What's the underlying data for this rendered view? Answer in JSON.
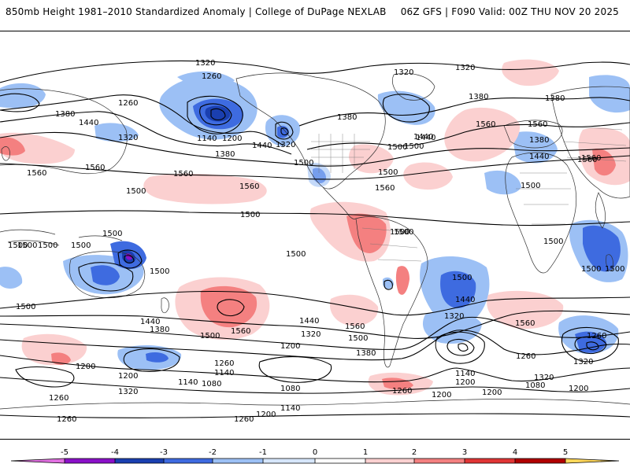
{
  "header": {
    "title": "850mb Height 1981–2010 Standardized Anomaly | College of DuPage NEXLAB",
    "run_info": "06Z GFS | F090 Valid: 00Z THU NOV 20 2025"
  },
  "colorbar": {
    "ticks": [
      "-5",
      "-4",
      "-3",
      "-2",
      "-1",
      "0",
      "1",
      "2",
      "3",
      "4",
      "5"
    ],
    "colors": [
      "#e070e0",
      "#8a10c8",
      "#1a3fb0",
      "#3e6be0",
      "#9cc0f5",
      "#d6e6fb",
      "#ffffff",
      "#fbd0d0",
      "#f48080",
      "#e03535",
      "#b00000",
      "#f6a000",
      "#ffd75a"
    ]
  },
  "contour_labels": [
    {
      "id": "1320-a",
      "text": "1320"
    },
    {
      "id": "1320-b",
      "text": "1320"
    },
    {
      "id": "1320-c",
      "text": "1320"
    },
    {
      "id": "1260-a",
      "text": "1260"
    },
    {
      "id": "1260-b",
      "text": "1260"
    },
    {
      "id": "1380-a",
      "text": "1380"
    },
    {
      "id": "1440-a",
      "text": "1440"
    },
    {
      "id": "1320-d",
      "text": "1320"
    },
    {
      "id": "1140-a",
      "text": "1140"
    },
    {
      "id": "1200-a",
      "text": "1200"
    },
    {
      "id": "1380-b",
      "text": "1380"
    },
    {
      "id": "1440-b",
      "text": "1440"
    },
    {
      "id": "1320-e",
      "text": "1320"
    },
    {
      "id": "1500-a",
      "text": "1500"
    },
    {
      "id": "1500-b",
      "text": "1500"
    },
    {
      "id": "1380-c",
      "text": "1380"
    },
    {
      "id": "1440-c",
      "text": "1440"
    },
    {
      "id": "1500-c",
      "text": "1500"
    },
    {
      "id": "1560-a",
      "text": "1560"
    },
    {
      "id": "1560-b",
      "text": "1560"
    },
    {
      "id": "1560-c",
      "text": "1560"
    },
    {
      "id": "1560-d",
      "text": "1560"
    },
    {
      "id": "1500-d",
      "text": "1500"
    },
    {
      "id": "1560-e",
      "text": "1560"
    },
    {
      "id": "1560-f",
      "text": "1560"
    },
    {
      "id": "1380-d",
      "text": "1380"
    },
    {
      "id": "1440-d",
      "text": "1440"
    },
    {
      "id": "1500-e",
      "text": "1500"
    },
    {
      "id": "1560-g",
      "text": "1560"
    },
    {
      "id": "1500-f",
      "text": "1500"
    },
    {
      "id": "1500-g",
      "text": "1500"
    },
    {
      "id": "1500-h",
      "text": "1500"
    },
    {
      "id": "1500-i",
      "text": "1500"
    },
    {
      "id": "1500-j",
      "text": "1500"
    },
    {
      "id": "1500-k",
      "text": "1500"
    },
    {
      "id": "1500-l",
      "text": "1500"
    },
    {
      "id": "1500-m",
      "text": "1500"
    },
    {
      "id": "1500-n",
      "text": "1500"
    },
    {
      "id": "1500-o",
      "text": "1500"
    },
    {
      "id": "1500-p",
      "text": "1500"
    },
    {
      "id": "1500-q",
      "text": "1500"
    },
    {
      "id": "1440-e",
      "text": "1440"
    },
    {
      "id": "1380-e",
      "text": "1380"
    },
    {
      "id": "1500-r",
      "text": "1500"
    },
    {
      "id": "1560-h",
      "text": "1560"
    },
    {
      "id": "1440-f",
      "text": "1440"
    },
    {
      "id": "1320-f",
      "text": "1320"
    },
    {
      "id": "1200-b",
      "text": "1200"
    },
    {
      "id": "1560-i",
      "text": "1560"
    },
    {
      "id": "1500-s",
      "text": "1500"
    },
    {
      "id": "1380-f",
      "text": "1380"
    },
    {
      "id": "1260-c",
      "text": "1260"
    },
    {
      "id": "1140-b",
      "text": "1140"
    },
    {
      "id": "1200-c",
      "text": "1200"
    },
    {
      "id": "1140-c",
      "text": "1140"
    },
    {
      "id": "1080-a",
      "text": "1080"
    },
    {
      "id": "1080-b",
      "text": "1080"
    },
    {
      "id": "1320-g",
      "text": "1320"
    },
    {
      "id": "1200-d",
      "text": "1200"
    },
    {
      "id": "1260-d",
      "text": "1260"
    },
    {
      "id": "1260-e",
      "text": "1260"
    },
    {
      "id": "1140-d",
      "text": "1140"
    },
    {
      "id": "1200-e",
      "text": "1200"
    },
    {
      "id": "1260-f",
      "text": "1260"
    },
    {
      "id": "1320-h",
      "text": "1320"
    },
    {
      "id": "1440-g",
      "text": "1440"
    },
    {
      "id": "1560-j",
      "text": "1560"
    },
    {
      "id": "1260-g",
      "text": "1260"
    },
    {
      "id": "1140-e",
      "text": "1140"
    },
    {
      "id": "1200-f",
      "text": "1200"
    },
    {
      "id": "1200-g",
      "text": "1200"
    },
    {
      "id": "1200-h",
      "text": "1200"
    },
    {
      "id": "1260-h",
      "text": "1260"
    },
    {
      "id": "1080-c",
      "text": "1080"
    },
    {
      "id": "1320-i",
      "text": "1320"
    },
    {
      "id": "1200-i",
      "text": "1200"
    },
    {
      "id": "1260-i",
      "text": "1260"
    },
    {
      "id": "1320-j",
      "text": "1320"
    },
    {
      "id": "1380-g",
      "text": "1380"
    },
    {
      "id": "1560-k",
      "text": "1560"
    },
    {
      "id": "1380-h",
      "text": "1380"
    },
    {
      "id": "1440-h",
      "text": "1440"
    },
    {
      "id": "1560-l",
      "text": "1560"
    },
    {
      "id": "1500-t",
      "text": "1500"
    },
    {
      "id": "1500-u",
      "text": "1500"
    },
    {
      "id": "1500-v",
      "text": "1500"
    },
    {
      "id": "1500-w",
      "text": "1500"
    }
  ]
}
